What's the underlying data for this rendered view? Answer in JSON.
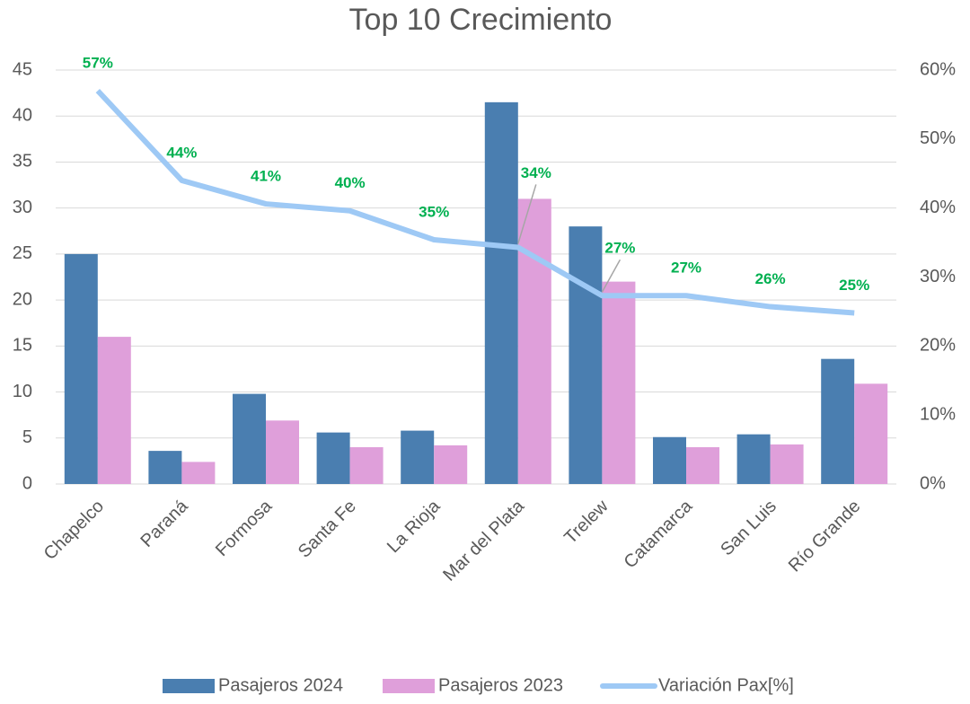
{
  "chart_data": {
    "type": "bar_line",
    "title": "Top 10 Crecimiento",
    "categories": [
      "Chapelco",
      "Paraná",
      "Formosa",
      "Santa Fe",
      "La Rioja",
      "Mar del Plata",
      "Trelew",
      "Catamarca",
      "San Luis",
      "Río Grande"
    ],
    "series": [
      {
        "name": "Pasajeros 2024",
        "color": "#4a7eb0",
        "type": "bar",
        "values": [
          25,
          3.6,
          9.8,
          5.6,
          5.8,
          41.5,
          28,
          5.1,
          5.4,
          13.6
        ]
      },
      {
        "name": "Pasajeros 2023",
        "color": "#df9fda",
        "type": "bar",
        "values": [
          16,
          2.4,
          6.9,
          4.0,
          4.2,
          31,
          22,
          4.0,
          4.3,
          10.9
        ]
      },
      {
        "name": "Variación Pax[%]",
        "color": "#9ec9f5",
        "type": "line",
        "axis": "y2",
        "values": [
          57,
          44,
          40.6,
          39.6,
          35.4,
          34.3,
          27.3,
          27.3,
          25.7,
          24.8
        ],
        "value_labels": [
          "57%",
          "44%",
          "41%",
          "40%",
          "35%",
          "34%",
          "27%",
          "27%",
          "26%",
          "25%"
        ]
      }
    ],
    "ylim": [
      0,
      45
    ],
    "yticks": [
      0,
      5,
      10,
      15,
      20,
      25,
      30,
      35,
      40,
      45
    ],
    "y2lim": [
      0,
      60
    ],
    "y2ticks": [
      {
        "value": 0,
        "label": "0%"
      },
      {
        "value": 10,
        "label": "10%"
      },
      {
        "value": 20,
        "label": "20%"
      },
      {
        "value": 30,
        "label": "30%"
      },
      {
        "value": 40,
        "label": "40%"
      },
      {
        "value": 50,
        "label": "50%"
      },
      {
        "value": 60,
        "label": "60%"
      }
    ],
    "grid": true,
    "legend": "bottom"
  }
}
